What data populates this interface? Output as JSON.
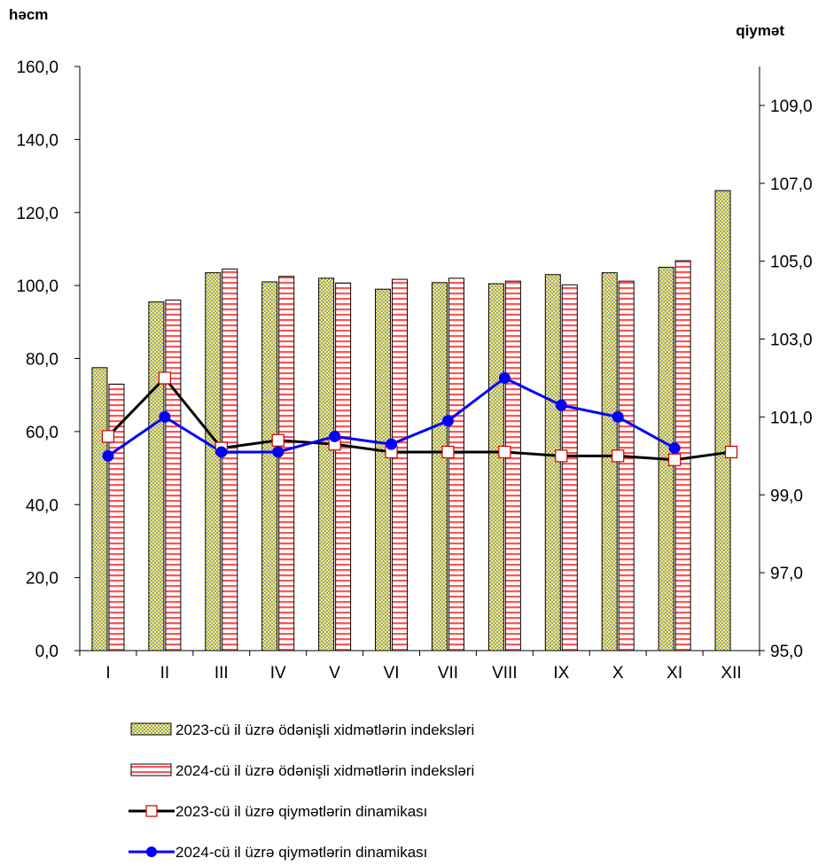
{
  "chart_data": {
    "type": "bar",
    "left_axis_title": "həcm",
    "right_axis_title": "qiymət",
    "categories": [
      "I",
      "II",
      "III",
      "IV",
      "V",
      "VI",
      "VII",
      "VIII",
      "IX",
      "X",
      "XI",
      "XII"
    ],
    "y_left": {
      "min": 0,
      "max": 160,
      "step": 20,
      "tick_labels": [
        "0,0",
        "20,0",
        "40,0",
        "60,0",
        "80,0",
        "100,0",
        "120,0",
        "140,0",
        "160,0"
      ]
    },
    "y_right": {
      "min": 95,
      "max": 110,
      "ticks": [
        95,
        97,
        99,
        101,
        103,
        105,
        107,
        109
      ],
      "tick_labels": [
        "95,0",
        "97,0",
        "99,0",
        "101,0",
        "103,0",
        "105,0",
        "107,0",
        "109,0"
      ]
    },
    "grid": false,
    "legend_position": "bottom",
    "series": [
      {
        "name": "2023-cü il üzrə ödənişli xidmətlərin indeksləri",
        "kind": "bar",
        "axis": "left",
        "pattern": "yellow-checker",
        "values": [
          77.5,
          95.5,
          103.5,
          101.0,
          102.0,
          99.0,
          100.8,
          100.5,
          103.0,
          103.5,
          105.0,
          126.0
        ]
      },
      {
        "name": "2024-cü il üzrə ödənişli xidmətlərin indeksləri",
        "kind": "bar",
        "axis": "left",
        "pattern": "red-stripes",
        "values": [
          73.0,
          96.0,
          104.5,
          102.5,
          100.7,
          101.7,
          102.0,
          101.2,
          100.2,
          101.2,
          106.8,
          null
        ]
      },
      {
        "name": "2023-cü il üzrə qiymətlərin dinamikası",
        "kind": "line",
        "axis": "right",
        "color": "#000000",
        "marker": "square",
        "values": [
          100.5,
          102.0,
          100.2,
          100.4,
          100.3,
          100.1,
          100.1,
          100.1,
          100.0,
          100.0,
          99.9,
          100.1
        ]
      },
      {
        "name": "2024-cü il üzrə qiymətlərin dinamikası",
        "kind": "line",
        "axis": "right",
        "color": "#0000ff",
        "marker": "circle",
        "values": [
          100.0,
          101.0,
          100.1,
          100.1,
          100.5,
          100.3,
          100.9,
          102.0,
          101.3,
          101.0,
          100.2,
          null
        ]
      }
    ]
  }
}
